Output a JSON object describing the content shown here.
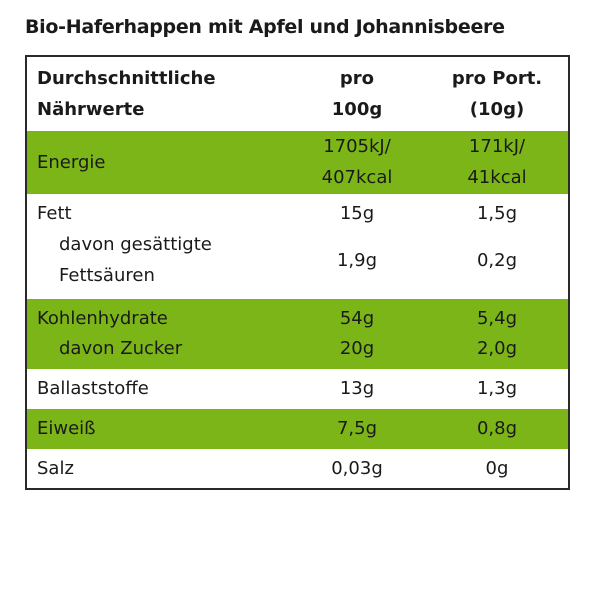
{
  "title": "Bio-Haferhappen mit Apfel und Johannisbeere",
  "header": {
    "col1": [
      "Durchschnittliche",
      "Nährwerte"
    ],
    "col2": [
      "pro",
      "100g"
    ],
    "col3": [
      "pro Port.",
      "(10g)"
    ]
  },
  "rows": {
    "energie": {
      "label": "Energie",
      "v100": [
        "1705kJ/",
        "407kcal"
      ],
      "vport": [
        "171kJ/",
        "41kcal"
      ]
    },
    "fett": {
      "label": "Fett",
      "v100": "15g",
      "vport": "1,5g"
    },
    "fettsaeuren": {
      "label": [
        "davon gesättigte",
        "Fettsäuren"
      ],
      "v100": "1,9g",
      "vport": "0,2g"
    },
    "kohlenhydrate": {
      "label": "Kohlenhydrate",
      "v100": "54g",
      "vport": "5,4g"
    },
    "zucker": {
      "label": "davon Zucker",
      "v100": "20g",
      "vport": "2,0g"
    },
    "ballaststoffe": {
      "label": "Ballaststoffe",
      "v100": "13g",
      "vport": "1,3g"
    },
    "eiweiss": {
      "label": "Eiweiß",
      "v100": "7,5g",
      "vport": "0,8g"
    },
    "salz": {
      "label": "Salz",
      "v100": "0,03g",
      "vport": "0g"
    }
  },
  "colors": {
    "highlight": "#7cb518",
    "border": "#2a2a2a"
  }
}
